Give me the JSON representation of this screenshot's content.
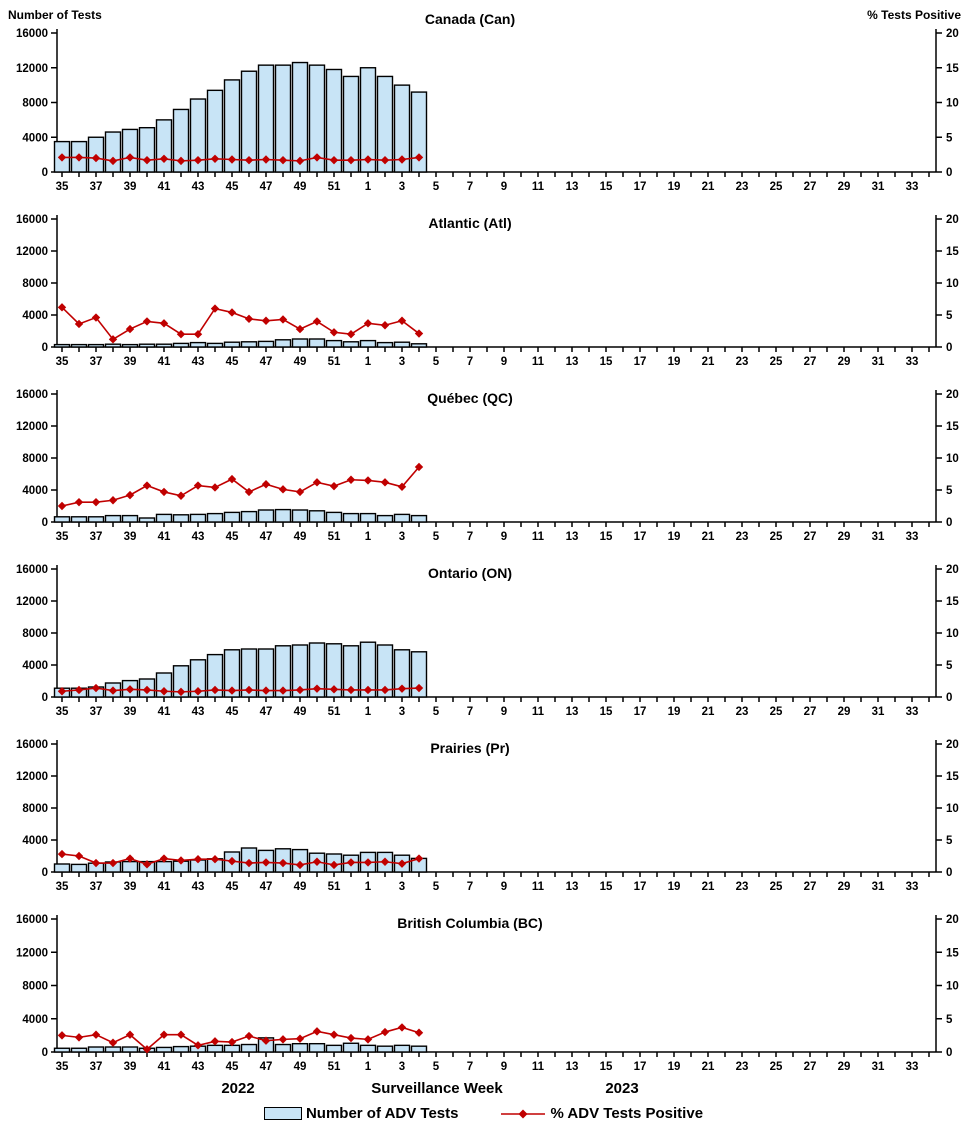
{
  "header": {
    "left_axis_label": "Number of Tests",
    "right_axis_label": "%  Tests Positive"
  },
  "colors": {
    "bar_fill": "#C8E4F6",
    "bar_border": "#000000",
    "line": "#C00000",
    "axis": "#000000"
  },
  "x_axis": {
    "year_left": "2022",
    "title": "Surveillance Week",
    "year_right": "2023",
    "tick_weeks": [
      35,
      36,
      37,
      38,
      39,
      40,
      41,
      42,
      43,
      44,
      45,
      46,
      47,
      48,
      49,
      50,
      51,
      52,
      1,
      2,
      3,
      4,
      5,
      6,
      7,
      8,
      9,
      10,
      11,
      12,
      13,
      14,
      15,
      16,
      17,
      18,
      19,
      20,
      21,
      22,
      23,
      24,
      25,
      26,
      27,
      28,
      29,
      30,
      31,
      32,
      33,
      34
    ]
  },
  "legend": {
    "bars_label": "Number of ADV Tests",
    "line_label": "% ADV Tests Positive"
  },
  "chart_data": [
    {
      "type": "bar+line",
      "title": "Canada (Can)",
      "ylabel_left": "Number of Tests",
      "ylabel_right": "% Tests Positive",
      "ylim_left": [
        0,
        16000
      ],
      "ylim_right": [
        0,
        20
      ],
      "left_ticks": [
        0,
        4000,
        8000,
        12000,
        16000
      ],
      "right_ticks": [
        0,
        5,
        10,
        15,
        20
      ],
      "weeks": [
        "35",
        "36",
        "37",
        "38",
        "39",
        "40",
        "41",
        "42",
        "43",
        "44",
        "45",
        "46",
        "47",
        "48",
        "49",
        "50",
        "51",
        "52",
        "1",
        "2",
        "3",
        "4"
      ],
      "tests": [
        3500,
        3500,
        4000,
        4600,
        4900,
        5100,
        6000,
        7200,
        8400,
        9400,
        10600,
        11600,
        12300,
        12300,
        12600,
        12300,
        11800,
        11000,
        12000,
        11000,
        10000,
        9200
      ],
      "pct_positive": [
        2.1,
        2.1,
        2.0,
        1.6,
        2.1,
        1.7,
        1.9,
        1.6,
        1.7,
        1.9,
        1.8,
        1.7,
        1.8,
        1.7,
        1.6,
        2.1,
        1.7,
        1.7,
        1.8,
        1.7,
        1.8,
        2.1
      ]
    },
    {
      "type": "bar+line",
      "title": "Atlantic (Atl)",
      "ylim_left": [
        0,
        16000
      ],
      "ylim_right": [
        0,
        20
      ],
      "left_ticks": [
        0,
        4000,
        8000,
        12000,
        16000
      ],
      "right_ticks": [
        0,
        5,
        10,
        15,
        20
      ],
      "weeks": [
        "35",
        "36",
        "37",
        "38",
        "39",
        "40",
        "41",
        "42",
        "43",
        "44",
        "45",
        "46",
        "47",
        "48",
        "49",
        "50",
        "51",
        "52",
        "1",
        "2",
        "3",
        "4"
      ],
      "tests": [
        300,
        300,
        300,
        350,
        300,
        350,
        350,
        450,
        550,
        450,
        600,
        650,
        700,
        900,
        1000,
        1000,
        800,
        650,
        800,
        550,
        600,
        400
      ],
      "pct_positive": [
        6.2,
        3.6,
        4.6,
        1.2,
        2.8,
        4.0,
        3.7,
        2.0,
        2.0,
        6.0,
        5.4,
        4.4,
        4.1,
        4.3,
        2.8,
        4.0,
        2.3,
        2.0,
        3.7,
        3.4,
        4.1,
        2.1
      ]
    },
    {
      "type": "bar+line",
      "title": "Québec (QC)",
      "ylim_left": [
        0,
        16000
      ],
      "ylim_right": [
        0,
        20
      ],
      "left_ticks": [
        0,
        4000,
        8000,
        12000,
        16000
      ],
      "right_ticks": [
        0,
        5,
        10,
        15,
        20
      ],
      "weeks": [
        "35",
        "36",
        "37",
        "38",
        "39",
        "40",
        "41",
        "42",
        "43",
        "44",
        "45",
        "46",
        "47",
        "48",
        "49",
        "50",
        "51",
        "52",
        "1",
        "2",
        "3",
        "4"
      ],
      "tests": [
        650,
        650,
        650,
        800,
        800,
        500,
        950,
        900,
        950,
        1050,
        1200,
        1300,
        1500,
        1550,
        1500,
        1400,
        1200,
        1050,
        1050,
        800,
        950,
        800
      ],
      "pct_positive": [
        2.5,
        3.1,
        3.1,
        3.4,
        4.2,
        5.7,
        4.7,
        4.1,
        5.7,
        5.4,
        6.7,
        4.7,
        5.9,
        5.1,
        4.7,
        6.2,
        5.6,
        6.6,
        6.5,
        6.2,
        5.5,
        8.6
      ]
    },
    {
      "type": "bar+line",
      "title": "Ontario (ON)",
      "ylim_left": [
        0,
        16000
      ],
      "ylim_right": [
        0,
        20
      ],
      "left_ticks": [
        0,
        4000,
        8000,
        12000,
        16000
      ],
      "right_ticks": [
        0,
        5,
        10,
        15,
        20
      ],
      "weeks": [
        "35",
        "36",
        "37",
        "38",
        "39",
        "40",
        "41",
        "42",
        "43",
        "44",
        "45",
        "46",
        "47",
        "48",
        "49",
        "50",
        "51",
        "52",
        "1",
        "2",
        "3",
        "4"
      ],
      "tests": [
        1100,
        1100,
        1250,
        1750,
        2050,
        2250,
        3000,
        3900,
        4650,
        5300,
        5900,
        6000,
        6000,
        6400,
        6500,
        6750,
        6650,
        6400,
        6850,
        6500,
        5900,
        5650
      ],
      "pct_positive": [
        0.9,
        1.1,
        1.4,
        1.0,
        1.2,
        1.1,
        0.9,
        0.8,
        0.9,
        1.1,
        1.0,
        1.1,
        1.0,
        1.0,
        1.1,
        1.3,
        1.2,
        1.1,
        1.1,
        1.1,
        1.3,
        1.4
      ]
    },
    {
      "type": "bar+line",
      "title": "Prairies (Pr)",
      "ylim_left": [
        0,
        16000
      ],
      "ylim_right": [
        0,
        20
      ],
      "left_ticks": [
        0,
        4000,
        8000,
        12000,
        16000
      ],
      "right_ticks": [
        0,
        5,
        10,
        15,
        20
      ],
      "weeks": [
        "35",
        "36",
        "37",
        "38",
        "39",
        "40",
        "41",
        "42",
        "43",
        "44",
        "45",
        "46",
        "47",
        "48",
        "49",
        "50",
        "51",
        "52",
        "1",
        "2",
        "3",
        "4"
      ],
      "tests": [
        1000,
        950,
        1100,
        1250,
        1300,
        1300,
        1300,
        1350,
        1500,
        1650,
        2500,
        3000,
        2700,
        2900,
        2800,
        2350,
        2250,
        2100,
        2450,
        2450,
        2100,
        1700
      ],
      "pct_positive": [
        2.8,
        2.5,
        1.4,
        1.4,
        2.1,
        1.2,
        2.1,
        1.8,
        2.0,
        2.0,
        1.7,
        1.4,
        1.5,
        1.4,
        1.1,
        1.6,
        1.1,
        1.5,
        1.5,
        1.6,
        1.3,
        2.1
      ]
    },
    {
      "type": "bar+line",
      "title": "British Columbia (BC)",
      "ylim_left": [
        0,
        16000
      ],
      "ylim_right": [
        0,
        20
      ],
      "left_ticks": [
        0,
        4000,
        8000,
        12000,
        16000
      ],
      "right_ticks": [
        0,
        5,
        10,
        15,
        20
      ],
      "weeks": [
        "35",
        "36",
        "37",
        "38",
        "39",
        "40",
        "41",
        "42",
        "43",
        "44",
        "45",
        "46",
        "47",
        "48",
        "49",
        "50",
        "51",
        "52",
        "1",
        "2",
        "3",
        "4"
      ],
      "tests": [
        450,
        450,
        600,
        600,
        600,
        450,
        550,
        650,
        700,
        800,
        800,
        900,
        1700,
        900,
        1000,
        1000,
        800,
        1050,
        800,
        700,
        800,
        700
      ],
      "pct_positive": [
        2.5,
        2.2,
        2.6,
        1.4,
        2.6,
        0.4,
        2.6,
        2.6,
        1.0,
        1.6,
        1.5,
        2.4,
        1.7,
        1.9,
        2.0,
        3.1,
        2.6,
        2.1,
        1.9,
        3.0,
        3.7,
        2.9
      ]
    }
  ]
}
